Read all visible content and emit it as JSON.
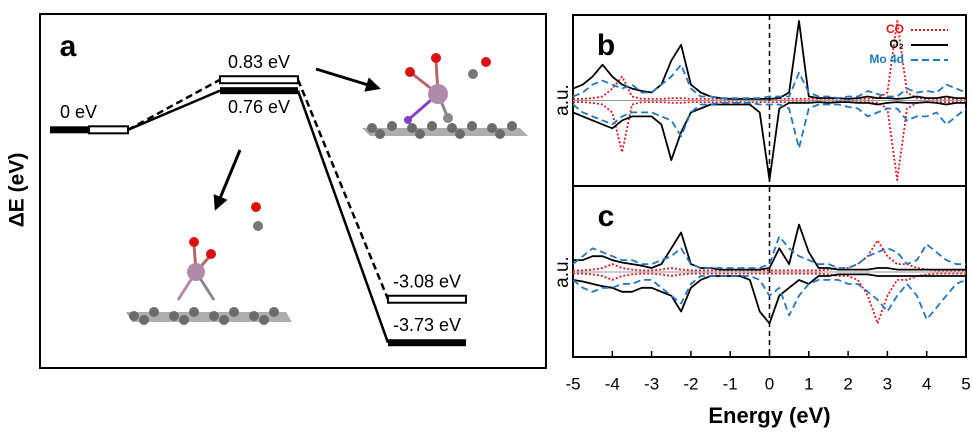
{
  "chart_data": [
    {
      "type": "levels",
      "panel_label": "a",
      "ylabel": "ΔE (eV)",
      "ylim": [
        -4.1,
        1.6
      ],
      "series": [
        {
          "style": "hollow",
          "dash": "dashed",
          "color": "#000000",
          "values": [
            0,
            0.83,
            -3.08
          ],
          "value_labels": [
            "0 eV",
            "0.83 eV",
            "-3.08 eV"
          ]
        },
        {
          "style": "filled",
          "dash": "solid",
          "color": "#000000",
          "values": [
            0,
            0.76,
            -3.73
          ],
          "value_labels": [
            null,
            "0.76 eV",
            "-3.73 eV"
          ]
        }
      ]
    },
    {
      "type": "line",
      "panel_label": "b",
      "ylabel": "a.u.",
      "legend": "upper right",
      "x": [
        -5,
        -4.75,
        -4.5,
        -4.25,
        -4,
        -3.75,
        -3.5,
        -3.25,
        -3,
        -2.75,
        -2.5,
        -2.25,
        -2,
        -1.75,
        -1.5,
        -1.25,
        -1,
        -0.75,
        -0.5,
        -0.25,
        0,
        0.25,
        0.5,
        0.75,
        1,
        1.25,
        1.5,
        1.75,
        2,
        2.25,
        2.5,
        2.75,
        3,
        3.25,
        3.5,
        3.75,
        4,
        4.25,
        4.5,
        4.75,
        5
      ],
      "xlim": [
        -5,
        5
      ],
      "ylim": [
        -1.05,
        1.05
      ],
      "vlines": [
        0
      ],
      "series": [
        {
          "name": "CO",
          "color": "#e8141c",
          "dash": "dotted",
          "values": [
            0.02,
            0.02,
            0.03,
            0.05,
            0.15,
            0.3,
            0.05,
            0.02,
            0.02,
            0.02,
            0.03,
            0.03,
            0.02,
            0.02,
            0.02,
            0.02,
            0.02,
            0.02,
            0.02,
            0.02,
            0.02,
            0.02,
            0.02,
            0.02,
            0.02,
            0.02,
            0.02,
            0.02,
            0.02,
            0.02,
            0.02,
            0.03,
            0.1,
            1.0,
            0.1,
            0.03,
            0.02,
            0.02,
            0.02,
            0.02,
            0.02
          ],
          "values_down": [
            -0.02,
            -0.02,
            -0.03,
            -0.05,
            -0.15,
            -0.65,
            -0.05,
            -0.02,
            -0.02,
            -0.02,
            -0.03,
            -0.03,
            -0.02,
            -0.02,
            -0.02,
            -0.02,
            -0.02,
            -0.02,
            -0.02,
            -0.02,
            -0.02,
            -0.02,
            -0.02,
            -0.02,
            -0.02,
            -0.02,
            -0.02,
            -0.02,
            -0.02,
            -0.02,
            -0.02,
            -0.03,
            -0.1,
            -1.0,
            -0.1,
            -0.03,
            -0.02,
            -0.02,
            -0.02,
            -0.02,
            -0.02
          ]
        },
        {
          "name": "O₂",
          "color": "#000000",
          "dash": "solid",
          "values": [
            0.15,
            0.2,
            0.3,
            0.45,
            0.3,
            0.2,
            0.15,
            0.12,
            0.1,
            0.2,
            0.5,
            0.7,
            0.2,
            0.1,
            0.05,
            0.03,
            0.02,
            0.02,
            0.02,
            0.02,
            0.02,
            0.03,
            0.1,
            1.0,
            0.05,
            0.03,
            0.03,
            0.03,
            0.02,
            0.03,
            0.05,
            0.03,
            0.03,
            0.02,
            0.03,
            0.05,
            0.03,
            0.03,
            0.05,
            0.03,
            0.03
          ],
          "values_down": [
            -0.15,
            -0.2,
            -0.25,
            -0.3,
            -0.35,
            -0.25,
            -0.2,
            -0.2,
            -0.2,
            -0.3,
            -0.75,
            -0.4,
            -0.15,
            -0.1,
            -0.05,
            -0.05,
            -0.05,
            -0.05,
            -0.05,
            -0.15,
            -1.0,
            -0.1,
            -0.03,
            -0.03,
            -0.03,
            -0.02,
            -0.03,
            -0.02,
            -0.02,
            -0.03,
            -0.03,
            -0.05,
            -0.03,
            -0.02,
            -0.03,
            -0.03,
            -0.02,
            -0.03,
            -0.05,
            -0.03,
            -0.03
          ]
        },
        {
          "name": "Mo 4d",
          "color": "#1f77c4",
          "dash": "dashed",
          "values": [
            0.05,
            0.1,
            0.2,
            0.25,
            0.2,
            0.15,
            0.2,
            0.1,
            0.1,
            0.2,
            0.3,
            0.45,
            0.15,
            0.05,
            0.05,
            0.03,
            0.03,
            0.03,
            0.03,
            0.03,
            0.05,
            0.05,
            0.05,
            0.35,
            0.1,
            0.05,
            0.05,
            0.03,
            0.05,
            0.05,
            0.12,
            0.08,
            0.05,
            0.05,
            0.15,
            0.1,
            0.12,
            0.1,
            0.2,
            0.15,
            0.1
          ],
          "values_down": [
            -0.05,
            -0.15,
            -0.2,
            -0.25,
            -0.3,
            -0.2,
            -0.15,
            -0.15,
            -0.15,
            -0.2,
            -0.25,
            -0.45,
            -0.15,
            -0.05,
            -0.05,
            -0.03,
            -0.03,
            -0.03,
            -0.03,
            -0.05,
            -0.05,
            -0.05,
            -0.1,
            -0.6,
            -0.1,
            -0.05,
            -0.05,
            -0.05,
            -0.08,
            -0.1,
            -0.2,
            -0.15,
            -0.1,
            -0.1,
            -0.25,
            -0.2,
            -0.2,
            -0.15,
            -0.3,
            -0.2,
            -0.1
          ]
        }
      ]
    },
    {
      "type": "line",
      "panel_label": "c",
      "ylabel": "a.u.",
      "xlabel": "Energy (eV)",
      "x": [
        -5,
        -4.75,
        -4.5,
        -4.25,
        -4,
        -3.75,
        -3.5,
        -3.25,
        -3,
        -2.75,
        -2.5,
        -2.25,
        -2,
        -1.75,
        -1.5,
        -1.25,
        -1,
        -0.75,
        -0.5,
        -0.25,
        0,
        0.25,
        0.5,
        0.75,
        1,
        1.25,
        1.5,
        1.75,
        2,
        2.25,
        2.5,
        2.75,
        3,
        3.25,
        3.5,
        3.75,
        4,
        4.25,
        4.5,
        4.75,
        5
      ],
      "xlim": [
        -5,
        5
      ],
      "xticks": [
        -5,
        -4,
        -3,
        -2,
        -1,
        0,
        1,
        2,
        3,
        4,
        5
      ],
      "ylim": [
        -1.05,
        1.05
      ],
      "vlines": [
        0
      ],
      "series": [
        {
          "color": "#e8141c",
          "dash": "dotted",
          "values": [
            0.02,
            0.02,
            0.03,
            0.05,
            0.1,
            0.05,
            0.03,
            0.02,
            0.02,
            0.03,
            0.05,
            0.03,
            0.02,
            0.02,
            0.02,
            0.02,
            0.02,
            0.02,
            0.02,
            0.02,
            0.02,
            0.02,
            0.02,
            0.02,
            0.02,
            0.02,
            0.03,
            0.05,
            0.05,
            0.1,
            0.2,
            0.4,
            0.2,
            0.1,
            0.1,
            0.05,
            0.03,
            0.02,
            0.02,
            0.02,
            0.02
          ],
          "values_down": [
            -0.02,
            -0.02,
            -0.03,
            -0.05,
            -0.1,
            -0.05,
            -0.03,
            -0.02,
            -0.02,
            -0.03,
            -0.05,
            -0.03,
            -0.02,
            -0.02,
            -0.02,
            -0.02,
            -0.02,
            -0.02,
            -0.02,
            -0.02,
            -0.02,
            -0.02,
            -0.02,
            -0.02,
            -0.02,
            -0.02,
            -0.03,
            -0.05,
            -0.05,
            -0.1,
            -0.3,
            -0.65,
            -0.3,
            -0.1,
            -0.1,
            -0.05,
            -0.03,
            -0.02,
            -0.02,
            -0.02,
            -0.02
          ]
        },
        {
          "color": "#000000",
          "dash": "solid",
          "values": [
            0.15,
            0.15,
            0.2,
            0.2,
            0.15,
            0.12,
            0.1,
            0.08,
            0.05,
            0.1,
            0.3,
            0.5,
            0.1,
            0.05,
            0.05,
            0.03,
            0.03,
            0.03,
            0.03,
            0.03,
            0.05,
            0.3,
            0.1,
            0.6,
            0.25,
            0.05,
            0.05,
            0.03,
            0.03,
            0.03,
            0.03,
            0.05,
            0.05,
            0.03,
            0.03,
            0.03,
            0.03,
            0.03,
            0.03,
            0.03,
            0.03
          ],
          "values_down": [
            -0.1,
            -0.12,
            -0.15,
            -0.18,
            -0.2,
            -0.25,
            -0.25,
            -0.2,
            -0.2,
            -0.25,
            -0.3,
            -0.5,
            -0.2,
            -0.1,
            -0.05,
            -0.05,
            -0.05,
            -0.05,
            -0.1,
            -0.5,
            -0.65,
            -0.3,
            -0.2,
            -0.1,
            -0.15,
            -0.05,
            -0.05,
            -0.03,
            -0.03,
            -0.03,
            -0.03,
            -0.05,
            -0.05,
            -0.05,
            -0.05,
            -0.05,
            -0.05,
            -0.05,
            -0.05,
            -0.05,
            -0.05
          ]
        },
        {
          "color": "#1f77c4",
          "dash": "dashed",
          "values": [
            0.1,
            0.2,
            0.3,
            0.25,
            0.2,
            0.15,
            0.15,
            0.1,
            0.1,
            0.15,
            0.2,
            0.3,
            0.1,
            0.05,
            0.05,
            0.05,
            0.05,
            0.05,
            0.05,
            0.05,
            0.1,
            0.45,
            0.3,
            0.2,
            0.15,
            0.1,
            0.1,
            0.05,
            0.05,
            0.1,
            0.2,
            0.25,
            0.3,
            0.25,
            0.1,
            0.15,
            0.35,
            0.25,
            0.15,
            0.1,
            0.1
          ],
          "values_down": [
            -0.1,
            -0.2,
            -0.25,
            -0.2,
            -0.2,
            -0.15,
            -0.15,
            -0.1,
            -0.1,
            -0.2,
            -0.3,
            -0.4,
            -0.15,
            -0.05,
            -0.05,
            -0.05,
            -0.05,
            -0.05,
            -0.05,
            -0.1,
            -0.3,
            -0.2,
            -0.55,
            -0.3,
            -0.15,
            -0.1,
            -0.1,
            -0.1,
            -0.15,
            -0.15,
            -0.25,
            -0.35,
            -0.5,
            -0.3,
            -0.15,
            -0.3,
            -0.6,
            -0.45,
            -0.3,
            -0.15,
            -0.1
          ]
        }
      ]
    }
  ]
}
